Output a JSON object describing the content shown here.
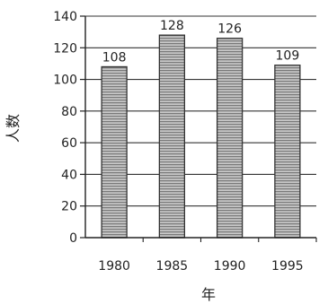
{
  "chart_data": {
    "type": "bar",
    "categories": [
      "1980",
      "1985",
      "1990",
      "1995"
    ],
    "values": [
      108,
      128,
      126,
      109
    ],
    "title": "",
    "xlabel": "年",
    "ylabel": "人数",
    "ylim": [
      0,
      140
    ],
    "yticks": [
      0,
      20,
      40,
      60,
      80,
      100,
      120,
      140
    ],
    "grid": true,
    "data_labels": true,
    "bar_color": "#9a9a9a",
    "bar_edge_color": "#333333",
    "grid_color": "#333333"
  }
}
